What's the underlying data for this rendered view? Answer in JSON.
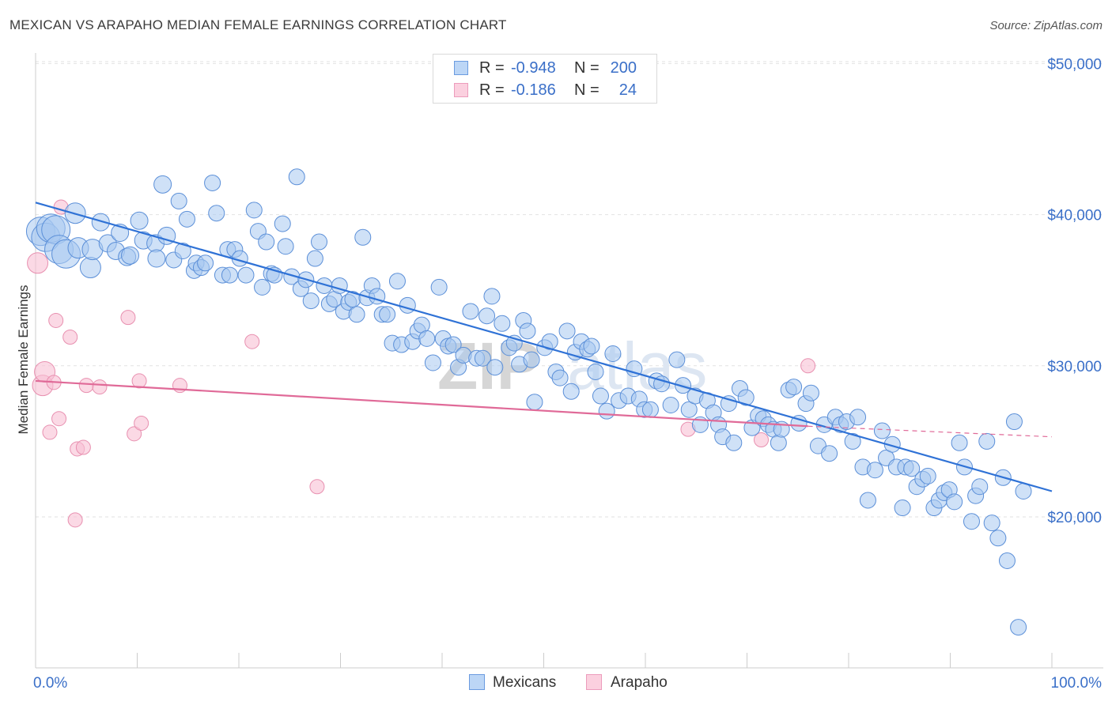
{
  "header": {
    "title": "MEXICAN VS ARAPAHO MEDIAN FEMALE EARNINGS CORRELATION CHART",
    "source": "Source: ZipAtlas.com"
  },
  "legend": {
    "rows": [
      {
        "r_label": "R =",
        "r_value": "-0.948",
        "n_label": "N =",
        "n_value": "200"
      },
      {
        "r_label": "R =",
        "r_value": "-0.186",
        "n_label": "N =",
        "n_value": "24"
      }
    ],
    "bottom": [
      "Mexicans",
      "Arapaho"
    ]
  },
  "colors": {
    "mexicans_fill": "#a8c8f0",
    "mexicans_stroke": "#5b8fd8",
    "mexicans_line": "#2f72d6",
    "arapaho_fill": "#f8c0d4",
    "arapaho_stroke": "#e890b0",
    "arapaho_line": "#e06a98",
    "axis_label_color": "#3a6fc8",
    "watermark": "#dcdcdc"
  },
  "chart_data": {
    "type": "scatter",
    "title": "MEXICAN VS ARAPAHO MEDIAN FEMALE EARNINGS CORRELATION CHART",
    "xlabel": "",
    "ylabel": "Median Female Earnings",
    "x_tick_labels": [
      "0.0%",
      "100.0%"
    ],
    "y_tick_labels": [
      "$20,000",
      "$30,000",
      "$40,000",
      "$50,000"
    ],
    "y_ticks": [
      20000,
      30000,
      40000,
      50000
    ],
    "xlim": [
      0,
      100
    ],
    "ylim": [
      10000,
      51000
    ],
    "grid": true,
    "legend_position": "top-center",
    "watermark": "ZIPatlas",
    "series": [
      {
        "name": "Mexicans",
        "R": -0.948,
        "N": 200,
        "trend": {
          "x": [
            0,
            100
          ],
          "y": [
            40800,
            21700
          ]
        },
        "points": [
          [
            0.5,
            38900
          ],
          [
            1.0,
            38500
          ],
          [
            1.5,
            39100
          ],
          [
            2.0,
            39000
          ],
          [
            2.3,
            37700
          ],
          [
            3.0,
            37400
          ],
          [
            3.9,
            40100
          ],
          [
            4.2,
            37800
          ],
          [
            5.4,
            36500
          ],
          [
            5.6,
            37700
          ],
          [
            6.4,
            39500
          ],
          [
            7.1,
            38100
          ],
          [
            7.9,
            37600
          ],
          [
            8.3,
            38800
          ],
          [
            9.0,
            37200
          ],
          [
            9.3,
            37300
          ],
          [
            10.2,
            39600
          ],
          [
            10.6,
            38300
          ],
          [
            11.8,
            38100
          ],
          [
            11.9,
            37100
          ],
          [
            12.5,
            42000
          ],
          [
            12.9,
            38600
          ],
          [
            13.6,
            37000
          ],
          [
            14.1,
            40900
          ],
          [
            14.5,
            37600
          ],
          [
            14.9,
            39700
          ],
          [
            15.6,
            36300
          ],
          [
            15.8,
            36800
          ],
          [
            16.3,
            36500
          ],
          [
            16.7,
            36800
          ],
          [
            17.4,
            42100
          ],
          [
            17.8,
            40100
          ],
          [
            18.4,
            36000
          ],
          [
            18.9,
            37700
          ],
          [
            19.1,
            36000
          ],
          [
            19.6,
            37700
          ],
          [
            20.1,
            37100
          ],
          [
            20.7,
            36000
          ],
          [
            21.5,
            40300
          ],
          [
            21.9,
            38900
          ],
          [
            22.3,
            35200
          ],
          [
            22.7,
            38200
          ],
          [
            23.2,
            36100
          ],
          [
            23.5,
            36000
          ],
          [
            24.3,
            39400
          ],
          [
            24.6,
            37900
          ],
          [
            25.2,
            35900
          ],
          [
            25.7,
            42500
          ],
          [
            26.1,
            35100
          ],
          [
            26.6,
            35700
          ],
          [
            27.1,
            34300
          ],
          [
            27.5,
            37100
          ],
          [
            27.9,
            38200
          ],
          [
            28.4,
            35300
          ],
          [
            28.9,
            34100
          ],
          [
            29.4,
            34400
          ],
          [
            29.9,
            35300
          ],
          [
            30.3,
            33600
          ],
          [
            30.8,
            34200
          ],
          [
            31.2,
            34400
          ],
          [
            31.6,
            33400
          ],
          [
            32.2,
            38500
          ],
          [
            32.6,
            34500
          ],
          [
            33.1,
            35300
          ],
          [
            33.6,
            34600
          ],
          [
            34.1,
            33400
          ],
          [
            34.6,
            33400
          ],
          [
            35.1,
            31500
          ],
          [
            35.6,
            35600
          ],
          [
            36.0,
            31400
          ],
          [
            36.6,
            34000
          ],
          [
            37.1,
            31600
          ],
          [
            37.6,
            32300
          ],
          [
            38.0,
            32700
          ],
          [
            38.5,
            31800
          ],
          [
            39.1,
            30200
          ],
          [
            39.7,
            35200
          ],
          [
            40.1,
            31800
          ],
          [
            40.6,
            31300
          ],
          [
            41.1,
            31400
          ],
          [
            41.6,
            29900
          ],
          [
            42.1,
            30700
          ],
          [
            42.8,
            33600
          ],
          [
            43.4,
            30500
          ],
          [
            44.0,
            30500
          ],
          [
            44.4,
            33300
          ],
          [
            44.9,
            34600
          ],
          [
            45.2,
            29900
          ],
          [
            45.9,
            32800
          ],
          [
            46.6,
            31200
          ],
          [
            47.1,
            31500
          ],
          [
            47.6,
            30100
          ],
          [
            48.0,
            33000
          ],
          [
            48.4,
            32300
          ],
          [
            48.8,
            30400
          ],
          [
            49.1,
            27600
          ],
          [
            50.1,
            31200
          ],
          [
            50.6,
            31600
          ],
          [
            51.2,
            29600
          ],
          [
            51.6,
            29200
          ],
          [
            52.3,
            32300
          ],
          [
            52.7,
            28300
          ],
          [
            53.1,
            30900
          ],
          [
            53.7,
            31600
          ],
          [
            54.3,
            31100
          ],
          [
            54.7,
            31300
          ],
          [
            55.1,
            29600
          ],
          [
            55.6,
            28000
          ],
          [
            56.2,
            27000
          ],
          [
            56.8,
            30800
          ],
          [
            57.4,
            27700
          ],
          [
            58.3,
            28000
          ],
          [
            58.9,
            29800
          ],
          [
            59.4,
            27800
          ],
          [
            59.9,
            27100
          ],
          [
            60.5,
            27100
          ],
          [
            61.1,
            29000
          ],
          [
            61.6,
            28800
          ],
          [
            62.5,
            27400
          ],
          [
            63.1,
            30400
          ],
          [
            63.7,
            28700
          ],
          [
            64.3,
            27100
          ],
          [
            64.9,
            28000
          ],
          [
            65.4,
            26100
          ],
          [
            66.1,
            27700
          ],
          [
            66.7,
            26900
          ],
          [
            67.2,
            26100
          ],
          [
            67.6,
            25300
          ],
          [
            68.2,
            27500
          ],
          [
            68.7,
            24900
          ],
          [
            69.3,
            28500
          ],
          [
            69.9,
            27900
          ],
          [
            70.5,
            25900
          ],
          [
            71.1,
            26700
          ],
          [
            71.6,
            26500
          ],
          [
            72.1,
            26100
          ],
          [
            72.6,
            25800
          ],
          [
            73.1,
            24900
          ],
          [
            73.4,
            25800
          ],
          [
            74.1,
            28400
          ],
          [
            74.6,
            28600
          ],
          [
            75.1,
            26200
          ],
          [
            75.8,
            27500
          ],
          [
            76.3,
            28200
          ],
          [
            77.0,
            24700
          ],
          [
            77.6,
            26100
          ],
          [
            78.1,
            24200
          ],
          [
            78.7,
            26600
          ],
          [
            79.2,
            26100
          ],
          [
            79.8,
            26300
          ],
          [
            80.4,
            25000
          ],
          [
            80.9,
            26600
          ],
          [
            81.4,
            23300
          ],
          [
            81.9,
            21100
          ],
          [
            82.6,
            23100
          ],
          [
            83.3,
            25700
          ],
          [
            83.7,
            23900
          ],
          [
            84.3,
            24800
          ],
          [
            84.7,
            23300
          ],
          [
            85.3,
            20600
          ],
          [
            85.6,
            23300
          ],
          [
            86.2,
            23200
          ],
          [
            86.7,
            22000
          ],
          [
            87.3,
            22500
          ],
          [
            87.8,
            22700
          ],
          [
            88.4,
            20600
          ],
          [
            88.9,
            21100
          ],
          [
            89.4,
            21600
          ],
          [
            89.9,
            21800
          ],
          [
            90.4,
            21000
          ],
          [
            90.9,
            24900
          ],
          [
            91.4,
            23300
          ],
          [
            92.1,
            19700
          ],
          [
            92.5,
            21400
          ],
          [
            92.9,
            22000
          ],
          [
            93.6,
            25000
          ],
          [
            94.1,
            19600
          ],
          [
            94.7,
            18600
          ],
          [
            95.2,
            22600
          ],
          [
            95.6,
            17100
          ],
          [
            96.3,
            26300
          ],
          [
            96.7,
            12700
          ],
          [
            97.2,
            21700
          ]
        ]
      },
      {
        "name": "Arapaho",
        "R": -0.186,
        "N": 24,
        "trend": {
          "x": [
            0,
            76
          ],
          "y": [
            29000,
            26000
          ]
        },
        "trend_extension": {
          "x": [
            76,
            100
          ],
          "y": [
            26000,
            25300
          ]
        },
        "points": [
          [
            0.2,
            36800
          ],
          [
            0.7,
            28700
          ],
          [
            0.9,
            29600
          ],
          [
            1.4,
            25600
          ],
          [
            1.8,
            28900
          ],
          [
            2.0,
            33000
          ],
          [
            2.3,
            26500
          ],
          [
            2.5,
            40500
          ],
          [
            3.4,
            31900
          ],
          [
            3.9,
            19800
          ],
          [
            4.1,
            24500
          ],
          [
            4.7,
            24600
          ],
          [
            5.0,
            28700
          ],
          [
            6.3,
            28600
          ],
          [
            9.1,
            33200
          ],
          [
            9.7,
            25500
          ],
          [
            10.2,
            29000
          ],
          [
            10.4,
            26200
          ],
          [
            14.2,
            28700
          ],
          [
            21.3,
            31600
          ],
          [
            27.7,
            22000
          ],
          [
            64.2,
            25800
          ],
          [
            71.4,
            25100
          ],
          [
            76.0,
            30000
          ]
        ]
      }
    ]
  }
}
